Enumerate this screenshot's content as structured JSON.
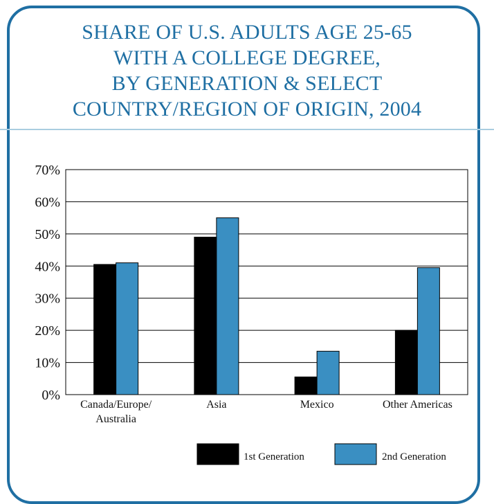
{
  "title_lines": [
    "SHARE OF U.S. ADULTS AGE 25-65",
    "WITH A COLLEGE DEGREE,",
    "BY GENERATION & SELECT",
    "COUNTRY/REGION OF ORIGIN, 2004"
  ],
  "colors": {
    "accent": "#1f6fa3",
    "rule": "#a9cde0",
    "first_gen": "#000000",
    "second_gen": "#3a8fc2"
  },
  "chart_data": {
    "type": "bar",
    "title": "SHARE OF U.S. ADULTS AGE 25-65 WITH A COLLEGE DEGREE, BY GENERATION & SELECT COUNTRY/REGION OF ORIGIN, 2004",
    "categories": [
      [
        "Canada/Europe/",
        "Australia"
      ],
      [
        "Asia"
      ],
      [
        "Mexico"
      ],
      [
        "Other Americas"
      ]
    ],
    "series": [
      {
        "name": "1st Generation",
        "values": [
          40.5,
          49,
          5.5,
          20
        ]
      },
      {
        "name": "2nd Generation",
        "values": [
          41,
          55,
          13.5,
          39.5
        ]
      }
    ],
    "yticks": [
      "0%",
      "10%",
      "20%",
      "30%",
      "40%",
      "50%",
      "60%",
      "70%"
    ],
    "ylim": [
      0,
      70
    ],
    "grid": true,
    "legend_position": "bottom-right"
  }
}
